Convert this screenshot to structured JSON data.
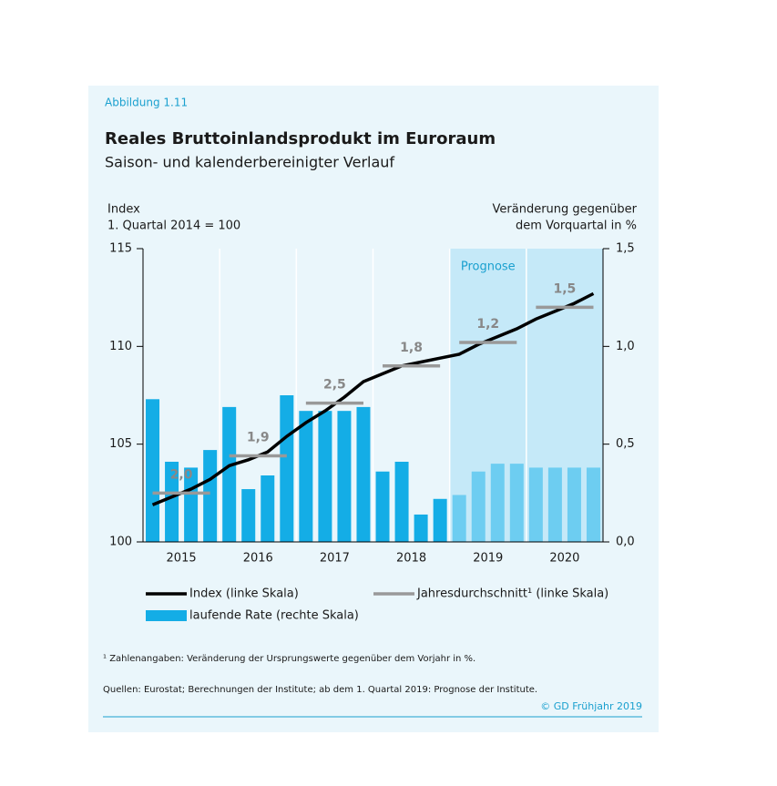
{
  "header": "Abbildung 1.11",
  "chart_data": {
    "type": "bar-line",
    "title": "Reales Bruttoinlandsprodukt im Euroraum",
    "subtitle": "Saison- und kalenderbereinigter Verlauf",
    "y_label": [
      "Index",
      "1. Quartal 2014 = 100"
    ],
    "y2_label": [
      "Veränderung gegenüber",
      "dem Vorquartal in %"
    ],
    "years": [
      "2015",
      "2016",
      "2017",
      "2018",
      "2019",
      "2020"
    ],
    "forecast_label": "Prognose",
    "forecast_from": "2019",
    "ylim": [
      100,
      115
    ],
    "yticks": [
      100,
      105,
      110,
      115
    ],
    "y2lim": [
      0,
      1.5
    ],
    "y2ticks": [
      {
        "value": 0,
        "label": "0,0"
      },
      {
        "value": 0.5,
        "label": "0,5"
      },
      {
        "value": 1.0,
        "label": "1,0"
      },
      {
        "value": 1.5,
        "label": "1,5"
      }
    ],
    "series": [
      {
        "name": "Index (linke Skala)",
        "type": "line",
        "axis": "y",
        "color": "#000000",
        "values": [
          101.9,
          102.3,
          102.7,
          103.2,
          103.9,
          104.2,
          104.6,
          105.4,
          106.1,
          106.7,
          107.4,
          108.2,
          108.6,
          109.0,
          109.2,
          109.4,
          109.6,
          110.1,
          110.5,
          110.9,
          111.4,
          111.8,
          112.2,
          112.7
        ]
      },
      {
        "name": "Jahresdurchschnitt¹ (linke Skala)",
        "type": "annual",
        "axis": "y",
        "color": "#999999",
        "values": [
          102.5,
          104.4,
          107.1,
          109.0,
          110.2,
          112.0
        ],
        "annual_growth_labels": [
          "2,0",
          "1,9",
          "2,5",
          "1,8",
          "1,2",
          "1,5"
        ]
      },
      {
        "name": "laufende Rate (rechte Skala)",
        "type": "bar",
        "axis": "y2",
        "color": "#14ade6",
        "forecast_color": "#6dcdf1",
        "values": [
          0.73,
          0.41,
          0.38,
          0.47,
          0.69,
          0.27,
          0.34,
          0.75,
          0.67,
          0.67,
          0.67,
          0.69,
          0.36,
          0.41,
          0.14,
          0.22,
          0.24,
          0.36,
          0.4,
          0.4,
          0.38,
          0.38,
          0.38,
          0.38
        ]
      }
    ]
  },
  "footnote": "¹ Zahlenangaben: Veränderung der Ursprungswerte gegenüber dem Vorjahr in %.",
  "source": "Quellen: Eurostat; Berechnungen der Institute; ab dem 1. Quartal 2019: Prognose der Institute.",
  "copyright": "© GD Frühjahr 2019"
}
